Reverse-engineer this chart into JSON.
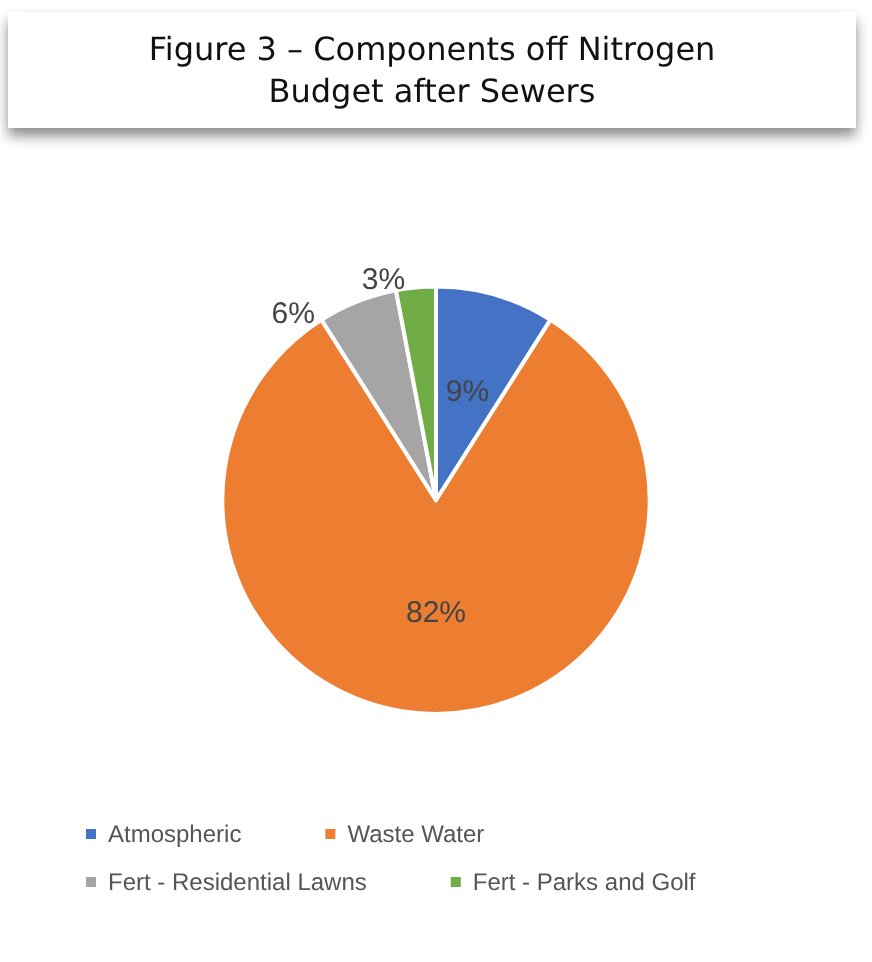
{
  "chart_data": {
    "type": "pie",
    "title": "Figure 3 – Components off Nitrogen Budget after Sewers",
    "categories": [
      "Atmospheric",
      "Waste Water",
      "Fert - Residential Lawns",
      "Fert - Parks and Golf"
    ],
    "values": [
      9,
      82,
      6,
      3
    ],
    "colors": [
      "#4472c4",
      "#ed7d31",
      "#a5a5a5",
      "#70ad47"
    ],
    "value_labels": [
      "9%",
      "82%",
      "6%",
      "3%"
    ],
    "legend": "bottom"
  }
}
